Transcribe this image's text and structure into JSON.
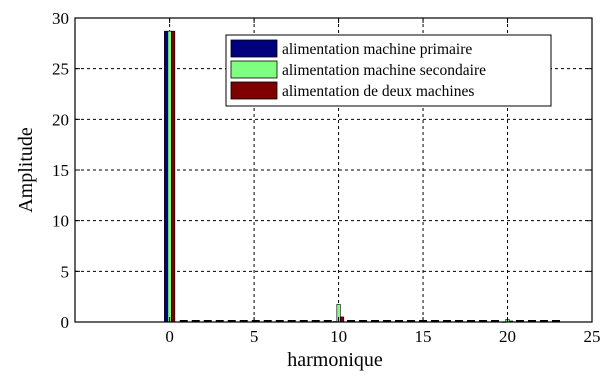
{
  "chart_data": {
    "type": "bar",
    "xlabel": "harmonique",
    "ylabel": "Amplitude",
    "xlim": [
      -5.6,
      25
    ],
    "ylim": [
      0,
      30
    ],
    "x_ticks": [
      0,
      5,
      10,
      15,
      20,
      25
    ],
    "y_ticks": [
      0,
      5,
      10,
      15,
      20,
      25,
      30
    ],
    "grid": true,
    "legend_position": "top-right",
    "harmonics": [
      0,
      10,
      20
    ],
    "series": [
      {
        "name": "alimentation machine primaire",
        "color": "#00007f",
        "values": [
          28.7,
          0.05,
          0.02
        ]
      },
      {
        "name": "alimentation machine secondaire",
        "color": "#7fff7f",
        "values": [
          28.7,
          1.75,
          0.25
        ]
      },
      {
        "name": "alimentation de deux machines",
        "color": "#7f0000",
        "values": [
          28.7,
          0.5,
          0.1
        ]
      }
    ],
    "baseline_segments": [
      [
        0.6,
        9.6
      ],
      [
        10.5,
        19.6
      ],
      [
        20.5,
        23.3
      ]
    ]
  }
}
